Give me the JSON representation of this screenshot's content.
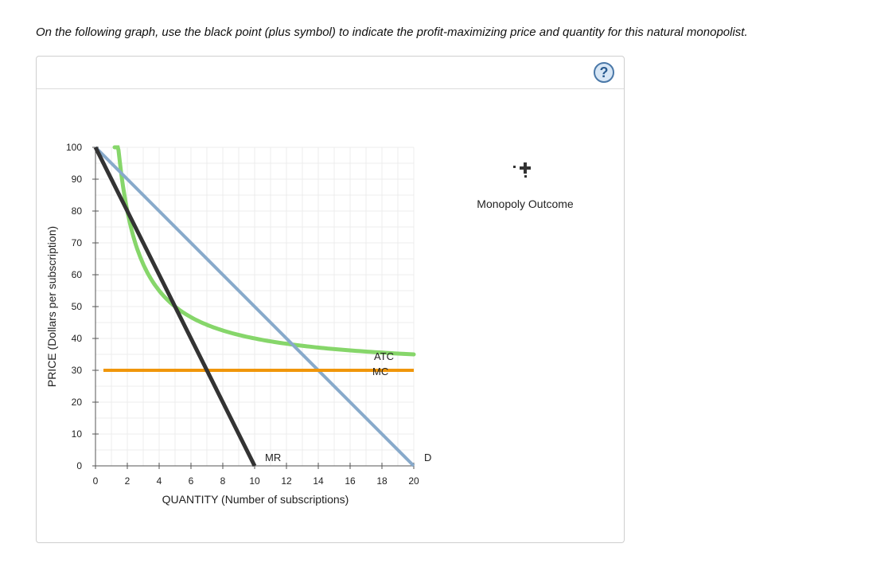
{
  "instruction": "On the following graph, use the black point (plus symbol) to indicate the profit-maximizing price and quantity for this natural monopolist.",
  "help_label": "?",
  "legend": {
    "label": "Monopoly Outcome",
    "icon": "plus-point-icon"
  },
  "chart_data": {
    "type": "line",
    "xlabel": "QUANTITY (Number of subscriptions)",
    "ylabel": "PRICE (Dollars per subscription)",
    "xlim": [
      0,
      20
    ],
    "ylim": [
      0,
      100
    ],
    "x_ticks": [
      0,
      2,
      4,
      6,
      8,
      10,
      12,
      14,
      16,
      18,
      20
    ],
    "y_ticks": [
      0,
      10,
      20,
      30,
      40,
      50,
      60,
      70,
      80,
      90,
      100
    ],
    "grid": true,
    "series": [
      {
        "name": "D",
        "color": "#88aacb",
        "x": [
          0,
          20
        ],
        "y": [
          100,
          0
        ]
      },
      {
        "name": "MR",
        "color": "#333333",
        "x": [
          0,
          10
        ],
        "y": [
          100,
          0
        ]
      },
      {
        "name": "MC",
        "color": "#f0960a",
        "x": [
          0.5,
          20
        ],
        "y": [
          30,
          30
        ]
      },
      {
        "name": "ATC",
        "color": "#86d66a",
        "fixed_cost": 100,
        "marginal_cost": 30,
        "x_range": [
          1.2,
          20
        ]
      }
    ]
  }
}
